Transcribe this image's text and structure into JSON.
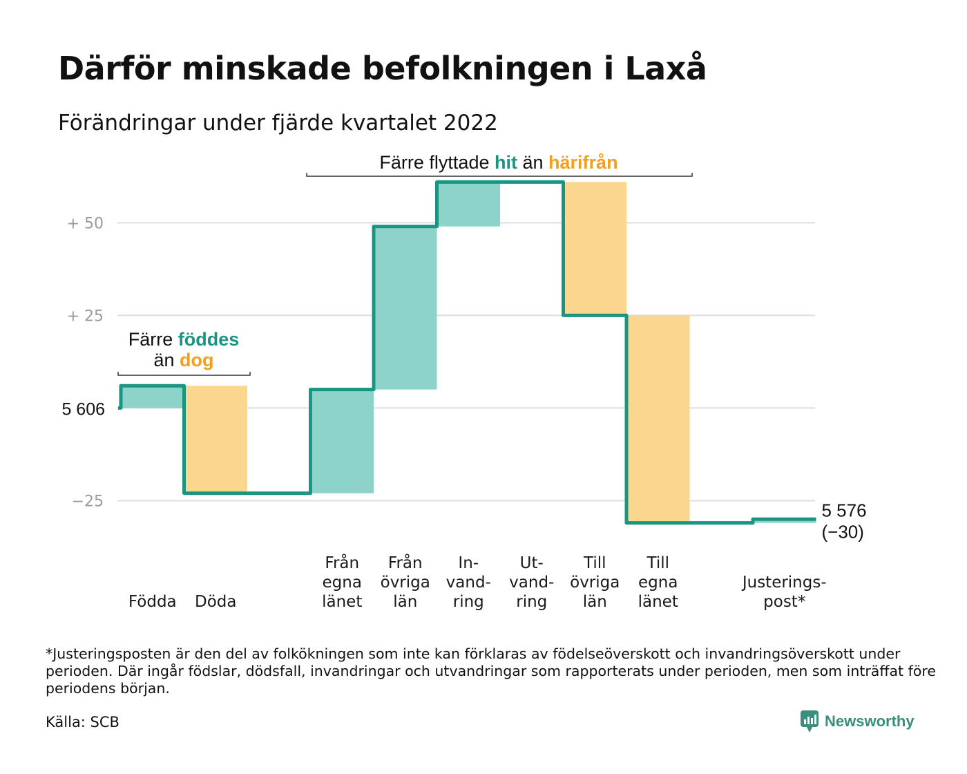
{
  "title": "Därför minskade befolkningen i Laxå",
  "subtitle": "Förändringar under fjärde kvartalet 2022",
  "footnote": "*Justeringsposten är den del av folkökningen som inte kan förklaras av födelseöverskott och invandringsöverskott under perioden. Där ingår födslar, dödsfall, invandringar och utvandringar som rapporterats under perioden, men som inträffat före periodens början.",
  "source": "Källa: SCB",
  "brand": "Newsworthy",
  "colors": {
    "positive": "#8dd3ca",
    "negative": "#fad68e",
    "line": "#1b9583",
    "accent_orange": "#f2a01d",
    "grid": "#dedede",
    "tick_text": "#9a9a9a"
  },
  "chart_data": {
    "type": "waterfall",
    "start_value": 5606,
    "start_label": "5 606",
    "end_value": 5576,
    "end_label": "5 576",
    "end_change_label": "(−30)",
    "ylim": [
      -32,
      62
    ],
    "yticks": [
      {
        "value": 50,
        "label": "+ 50"
      },
      {
        "value": 25,
        "label": "+ 25"
      },
      {
        "value": 0,
        "label": ""
      },
      {
        "value": -25,
        "label": "−25"
      }
    ],
    "steps": [
      {
        "label": "Födda",
        "change": 6
      },
      {
        "label": "Döda",
        "change": -29
      },
      {
        "label": "",
        "change": 0
      },
      {
        "label": "Från\negna\nlänet",
        "change": 28
      },
      {
        "label": "Från\növriga\nlän",
        "change": 44
      },
      {
        "label": "In-\nvand-\nring",
        "change": 12
      },
      {
        "label": "Ut-\nvand-\nring",
        "change": 0
      },
      {
        "label": "Till\növriga\nlän",
        "change": -36
      },
      {
        "label": "Till\negna\nlänet",
        "change": -56
      },
      {
        "label": "",
        "change": 0
      },
      {
        "label": "Justerings-\npost*",
        "change": 1
      }
    ],
    "annotations": [
      {
        "parts": [
          [
            "Färre ",
            "dark"
          ],
          [
            "föddes",
            "green"
          ]
        ],
        "parts2": [
          [
            "än ",
            "dark"
          ],
          [
            "dog",
            "orange"
          ]
        ]
      },
      {
        "parts": [
          [
            "Färre flyttade ",
            "dark"
          ],
          [
            "hit",
            "green"
          ],
          [
            " än ",
            "dark"
          ],
          [
            "härifrån",
            "orange"
          ]
        ]
      }
    ]
  }
}
